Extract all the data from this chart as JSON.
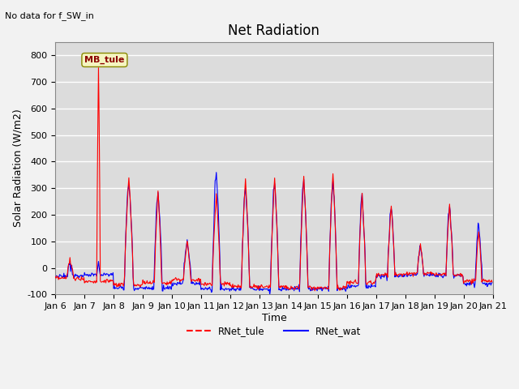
{
  "title": "Net Radiation",
  "xlabel": "Time",
  "ylabel": "Solar Radiation (W/m2)",
  "ylim": [
    -100,
    850
  ],
  "yticks": [
    -100,
    0,
    100,
    200,
    300,
    400,
    500,
    600,
    700,
    800
  ],
  "background_color": "#dcdcdc",
  "plot_bg_color": "#dcdcdc",
  "no_data_text": "No data for f_SW_in",
  "annotation_text": "MB_tule",
  "legend_labels": [
    "RNet_tule",
    "RNet_wat"
  ],
  "tule_color": "red",
  "wat_color": "blue",
  "title_fontsize": 12,
  "axis_fontsize": 9,
  "tick_fontsize": 8,
  "xticklabels": [
    "Jan 6",
    "Jan 7",
    "Jan 8",
    "Jan 9",
    "Jan 10",
    "Jan 11",
    "Jan 12",
    "Jan 13",
    "Jan 14",
    "Jan 15",
    "Jan 16",
    "Jan 17",
    "Jan 18",
    "Jan 19",
    "Jan 20",
    "Jan 21"
  ]
}
